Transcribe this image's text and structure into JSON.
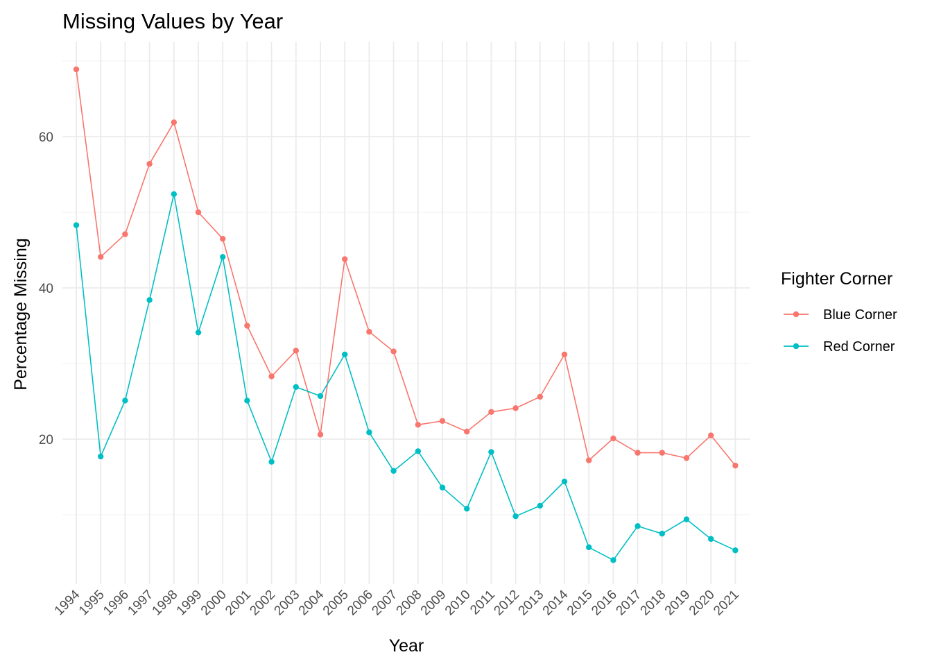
{
  "chart_data": {
    "type": "line",
    "title": "Missing Values by Year",
    "xlabel": "Year",
    "ylabel": "Percentage Missing",
    "x": [
      "1994",
      "1995",
      "1996",
      "1997",
      "1998",
      "1999",
      "2000",
      "2001",
      "2002",
      "2003",
      "2004",
      "2005",
      "2006",
      "2007",
      "2008",
      "2009",
      "2010",
      "2011",
      "2012",
      "2013",
      "2014",
      "2015",
      "2016",
      "2017",
      "2018",
      "2019",
      "2020",
      "2021"
    ],
    "y_ticks": [
      20,
      40,
      60
    ],
    "ylim": [
      1,
      70.5
    ],
    "grid": true,
    "legend": {
      "title": "Fighter Corner",
      "position": "right"
    },
    "series": [
      {
        "name": "Blue Corner",
        "color": "#F8766D",
        "values": [
          68.9,
          44.1,
          47.1,
          56.4,
          61.9,
          50.0,
          46.5,
          35.0,
          28.3,
          31.7,
          20.6,
          43.8,
          34.2,
          31.6,
          21.9,
          22.4,
          21.0,
          23.6,
          24.1,
          25.6,
          31.2,
          17.2,
          20.1,
          18.2,
          18.2,
          17.5,
          20.5,
          16.5
        ]
      },
      {
        "name": "Red Corner",
        "color": "#00BFC4",
        "values": [
          48.3,
          17.7,
          25.1,
          38.4,
          52.4,
          34.1,
          44.1,
          25.1,
          17.0,
          26.9,
          25.7,
          31.2,
          20.9,
          15.8,
          18.4,
          13.6,
          10.8,
          18.3,
          9.8,
          11.2,
          14.4,
          5.7,
          4.0,
          8.5,
          7.5,
          9.4,
          6.8,
          5.3
        ]
      }
    ]
  }
}
